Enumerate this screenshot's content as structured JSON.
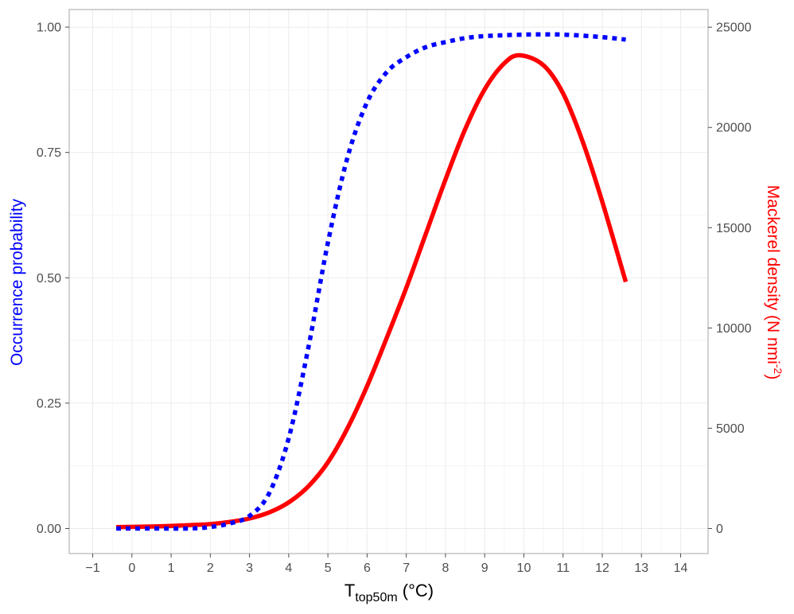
{
  "chart_data": {
    "type": "line",
    "xlabel": {
      "main": "T",
      "sub": "top50m",
      "unit": " (°C)"
    },
    "ylabel_left": "Occurrence probability",
    "ylabel_right": {
      "main": "Mackerel density (N nmi",
      "sup": "-2",
      "end": ")"
    },
    "xlim": [
      -1.6,
      14.7
    ],
    "ylim_left": [
      -0.05,
      1.035
    ],
    "ylim_right": [
      -1250,
      25880
    ],
    "x_ticks": [
      -1,
      0,
      1,
      2,
      3,
      4,
      5,
      6,
      7,
      8,
      9,
      10,
      11,
      12,
      13,
      14
    ],
    "x_tick_labels": [
      "−1",
      "0",
      "1",
      "2",
      "3",
      "4",
      "5",
      "6",
      "7",
      "8",
      "9",
      "10",
      "11",
      "12",
      "13",
      "14"
    ],
    "y_left_ticks": [
      0,
      0.25,
      0.5,
      0.75,
      1.0
    ],
    "y_left_tick_labels": [
      "0.00",
      "0.25",
      "0.50",
      "0.75",
      "1.00"
    ],
    "y_right_ticks": [
      0,
      5000,
      10000,
      15000,
      20000,
      25000
    ],
    "y_right_tick_labels": [
      "0",
      "5000",
      "10000",
      "15000",
      "20000",
      "25000"
    ],
    "grid": true,
    "series": [
      {
        "axis": "left",
        "color": "#0000ff",
        "style": "dotted",
        "x": [
          -0.4,
          0.5,
          1.5,
          2.0,
          2.5,
          3.0,
          3.5,
          4.0,
          4.5,
          5.0,
          5.5,
          6.0,
          6.5,
          7.0,
          7.5,
          8.0,
          8.5,
          9.0,
          10.0,
          11.0,
          12.0,
          12.6
        ],
        "y": [
          0.0,
          0.0,
          0.0,
          0.003,
          0.01,
          0.025,
          0.07,
          0.18,
          0.36,
          0.57,
          0.74,
          0.85,
          0.91,
          0.94,
          0.96,
          0.97,
          0.978,
          0.982,
          0.985,
          0.985,
          0.98,
          0.975
        ]
      },
      {
        "axis": "right",
        "color": "#ff0000",
        "style": "solid",
        "x": [
          -0.4,
          0.5,
          1.0,
          1.5,
          2.0,
          2.5,
          3.0,
          3.5,
          4.0,
          4.5,
          5.0,
          5.5,
          6.0,
          6.5,
          7.0,
          7.5,
          8.0,
          8.5,
          9.0,
          9.5,
          9.9,
          10.5,
          11.0,
          11.5,
          12.0,
          12.6
        ],
        "y": [
          70,
          100,
          130,
          170,
          220,
          330,
          500,
          800,
          1300,
          2100,
          3300,
          5000,
          7100,
          9500,
          12000,
          14700,
          17400,
          19900,
          21900,
          23200,
          23600,
          23100,
          21700,
          19300,
          16300,
          12300
        ]
      }
    ]
  }
}
